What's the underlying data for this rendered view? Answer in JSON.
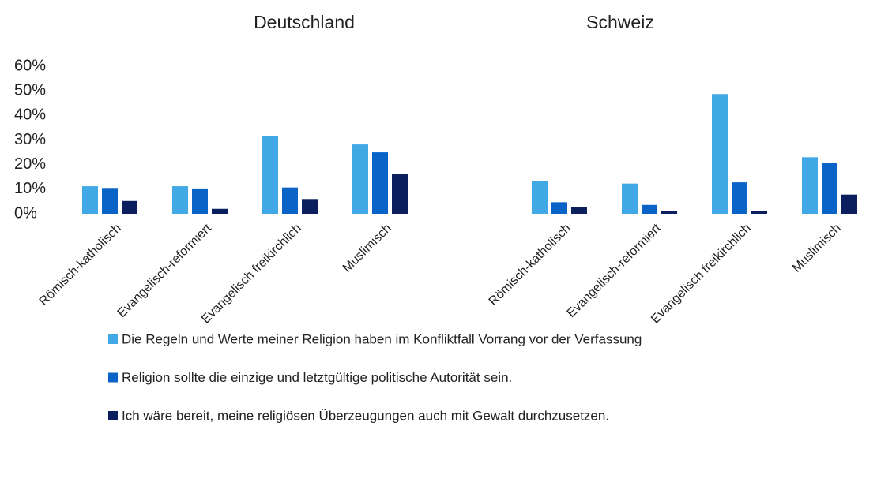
{
  "chart_data": [
    {
      "type": "bar",
      "title": "Deutschland",
      "categories": [
        "Römisch-katholisch",
        "Evangelisch-reformiert",
        "Evangelisch freikirchlich",
        "Muslimisch"
      ],
      "series": [
        {
          "name": "Die Regeln und Werte meiner Religion haben im Konfliktfall Vorrang vor der Verfassung",
          "color": "#41a9e6",
          "values": [
            11.2,
            11.2,
            31.5,
            28.2
          ]
        },
        {
          "name": "Religion sollte die einzige und letztgültige politische Autorität sein.",
          "color": "#0a64c8",
          "values": [
            10.5,
            10.3,
            10.7,
            25
          ]
        },
        {
          "name": "Ich wäre bereit, meine religiösen Überzeugungen auch mit Gewalt durchzusetzen.",
          "color": "#0b1f5e",
          "values": [
            5.2,
            2,
            6,
            16.3
          ]
        }
      ],
      "ylim": [
        0,
        60
      ],
      "yticks": [
        {
          "value": 0,
          "label": "0%"
        },
        {
          "value": 10,
          "label": "10%"
        },
        {
          "value": 20,
          "label": "20%"
        },
        {
          "value": 30,
          "label": "30%"
        },
        {
          "value": 40,
          "label": "40%"
        },
        {
          "value": 50,
          "label": "50%"
        },
        {
          "value": 60,
          "label": "60%"
        }
      ],
      "legend": "bottom"
    },
    {
      "type": "bar",
      "title": "Schweiz",
      "categories": [
        "Römisch-katholisch",
        "Evangelisch-reformiert",
        "Evangelisch freikirchlich",
        "Muslimisch"
      ],
      "series": [
        {
          "color": "#41a9e6",
          "values": [
            13.3,
            12.3,
            48.7,
            23
          ]
        },
        {
          "color": "#0a64c8",
          "values": [
            4.7,
            3.6,
            12.8,
            20.8
          ]
        },
        {
          "color": "#0b1f5e",
          "values": [
            2.7,
            1.2,
            1,
            7.8
          ]
        }
      ],
      "ylim": [
        0,
        60
      ]
    }
  ]
}
